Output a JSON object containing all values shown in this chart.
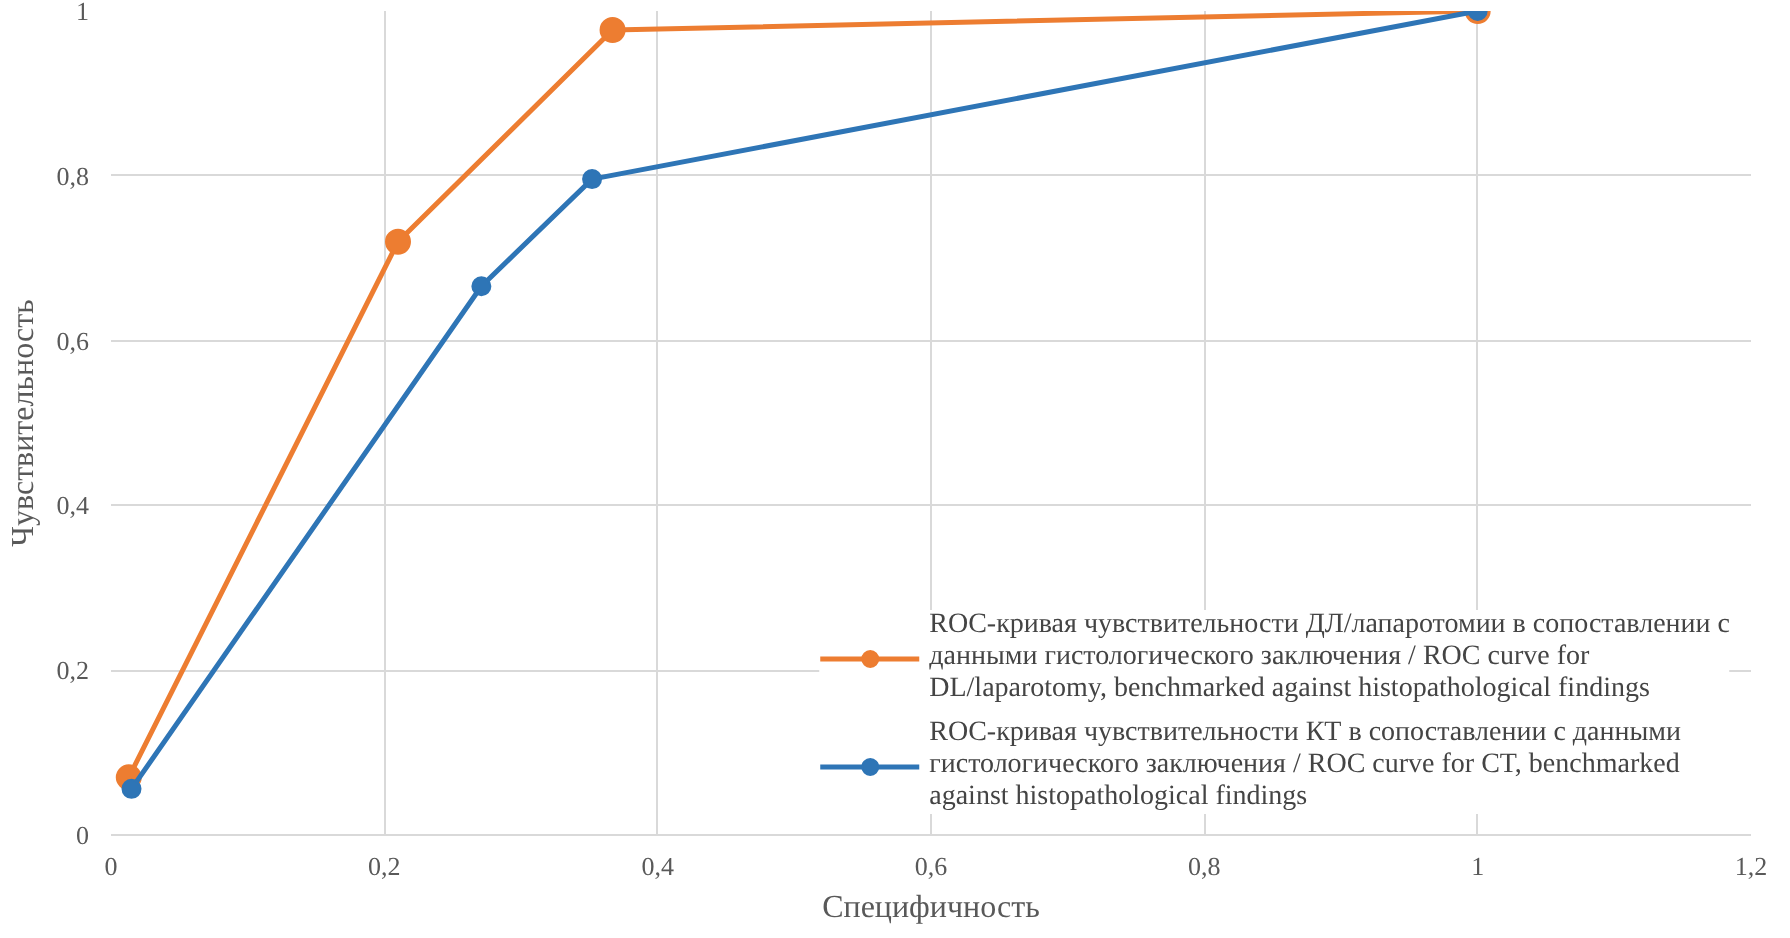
{
  "chart_data": {
    "type": "line",
    "xlabel": "Специфичность",
    "ylabel": "Чувствительность",
    "xlim": [
      0,
      1.2
    ],
    "ylim": [
      0,
      1
    ],
    "xticks": [
      0,
      {
        "value": 0.2,
        "label": "0,2"
      },
      {
        "value": 0.4,
        "label": "0,4"
      },
      {
        "value": 0.6,
        "label": "0,6"
      },
      {
        "value": 0.8,
        "label": "0,8"
      },
      1,
      {
        "value": 1.2,
        "label": "1,2"
      }
    ],
    "yticks": [
      0,
      {
        "value": 0.2,
        "label": "0,2"
      },
      {
        "value": 0.4,
        "label": "0,4"
      },
      {
        "value": 0.6,
        "label": "0,6"
      },
      {
        "value": 0.8,
        "label": "0,8"
      },
      1
    ],
    "grid": true,
    "legend": "bottom right",
    "marker": "circle",
    "line_style": "solid",
    "series": [
      {
        "name": "ROC-кривая чувствительности ДЛ/лапаротомии в сопоставлении с данными гистологического заключения / ROC curve for DL/laparotomy, benchmarked against histopathological findings",
        "color": "#ed7d31",
        "x": [
          0.013,
          0.21,
          0.367,
          1
        ],
        "values": [
          0.07,
          0.72,
          0.977,
          1
        ]
      },
      {
        "name": "ROC-кривая чувствительности КТ в сопоставлении с данными гистологического заключения / ROC curve for CT, benchmarked against histopathological findings",
        "color": "#2e75b6",
        "x": [
          0.015,
          0.271,
          0.352,
          1
        ],
        "values": [
          0.056,
          0.666,
          0.796,
          1
        ]
      }
    ]
  }
}
